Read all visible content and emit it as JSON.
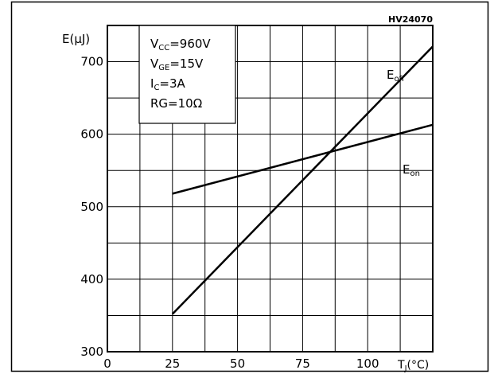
{
  "chart_data": {
    "type": "line",
    "code": "HV24070",
    "ylabel": "E(μJ)",
    "xlabel": "TJ(°C)",
    "xlabel_main": "T",
    "xlabel_sub": "J",
    "xlabel_unit": "(°C)",
    "xlim": [
      0,
      125
    ],
    "ylim": [
      300,
      750
    ],
    "grid": true,
    "x_ticks": [
      {
        "value": 0,
        "label": "0"
      },
      {
        "value": 25,
        "label": "25"
      },
      {
        "value": 50,
        "label": "50"
      },
      {
        "value": 75,
        "label": "75"
      },
      {
        "value": 100,
        "label": "100"
      }
    ],
    "y_ticks": [
      {
        "value": 300,
        "label": "300"
      },
      {
        "value": 400,
        "label": "400"
      },
      {
        "value": 500,
        "label": "500"
      },
      {
        "value": 600,
        "label": "600"
      },
      {
        "value": 700,
        "label": "700"
      }
    ],
    "series": [
      {
        "name": "Eoff",
        "name_main": "E",
        "name_sub": "off",
        "x": [
          25,
          125
        ],
        "y": [
          352,
          721
        ]
      },
      {
        "name": "Eon",
        "name_main": "E",
        "name_sub": "on",
        "x": [
          25,
          125
        ],
        "y": [
          518,
          613
        ]
      }
    ],
    "conditions": [
      {
        "main": "V",
        "sub": "CC",
        "rest": "=960V"
      },
      {
        "main": "V",
        "sub": "GE",
        "rest": "=15V"
      },
      {
        "main": "I",
        "sub": "C",
        "rest": "=3A"
      },
      {
        "main": "RG",
        "sub": "",
        "rest": "=10Ω"
      }
    ]
  }
}
